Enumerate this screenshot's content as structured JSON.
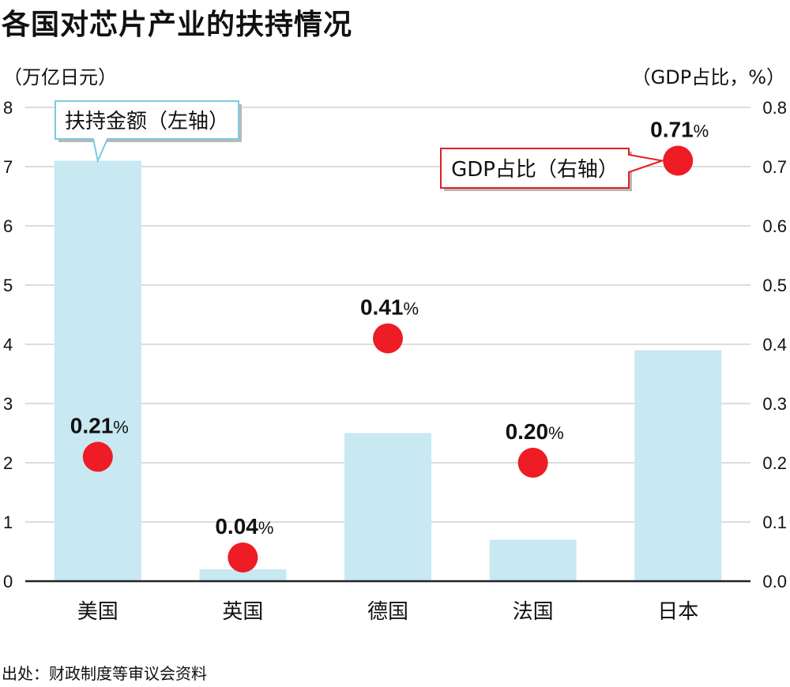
{
  "header": {
    "title": "各国对芯片产业的扶持情况",
    "left_unit": "（万亿日元）",
    "right_unit": "（GDP占比，%）"
  },
  "source": "出处：财政制度等审议会资料",
  "colors": {
    "bar": "#c8e8f2",
    "dot": "#ee1c25",
    "grid": "#d0d0d0",
    "axis": "#222222",
    "callout_left_border": "#7cc9e0",
    "callout_right_border": "#e02020"
  },
  "chart_data": {
    "type": "bar",
    "categories": [
      "美国",
      "英国",
      "德国",
      "法国",
      "日本"
    ],
    "series": [
      {
        "name": "扶持金额（左轴）",
        "type": "bar",
        "axis": "left",
        "values": [
          7.1,
          0.2,
          2.5,
          0.7,
          3.9
        ]
      },
      {
        "name": "GDP占比（右轴）",
        "type": "scatter",
        "axis": "right",
        "values": [
          0.21,
          0.04,
          0.41,
          0.2,
          0.71
        ],
        "labels": [
          "0.21",
          "0.04",
          "0.41",
          "0.20",
          "0.71"
        ],
        "label_suffix": "%"
      }
    ],
    "y_left": {
      "ylim": [
        0,
        8
      ],
      "ticks": [
        "0",
        "1",
        "2",
        "3",
        "4",
        "5",
        "6",
        "7",
        "8"
      ]
    },
    "y_right": {
      "ylim": [
        0,
        0.8
      ],
      "ticks": [
        "0.0",
        "0.1",
        "0.2",
        "0.3",
        "0.4",
        "0.5",
        "0.6",
        "0.7",
        "0.8"
      ]
    },
    "grid": true,
    "legend": "callouts"
  }
}
